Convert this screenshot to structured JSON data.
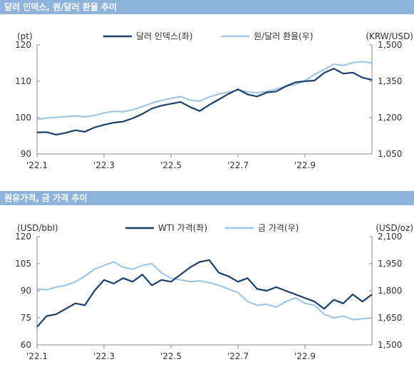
{
  "panels": [
    {
      "title": "달러 인덱스, 원/달러 환율 추이"
    },
    {
      "title": "원유가격, 금 가격 추이"
    }
  ],
  "colors": {
    "dark": "#1f3f66",
    "light": "#a3c6e2",
    "header": "#8fb4dc"
  },
  "chart_data": [
    {
      "type": "line",
      "title": "달러 인덱스, 원/달러 환율 추이",
      "y_left_unit": "(pt)",
      "y_right_unit": "(KRW/USD)",
      "y_left_range": [
        90,
        120
      ],
      "y_right_range": [
        1050,
        1500
      ],
      "y_left_ticks": [
        "120",
        "110",
        "100",
        "90"
      ],
      "y_right_ticks": [
        "1,500",
        "1,350",
        "1,200",
        "1,050"
      ],
      "x_ticks": [
        "'22.1",
        "'22.3",
        "'22.5",
        "'22.7",
        "'22.9"
      ],
      "legend_position": "top-center",
      "series": [
        {
          "name": "달러 인덱스(좌)",
          "axis": "left",
          "color": "#1f3f66",
          "x": [
            "'22.1",
            "",
            "",
            "",
            "",
            "",
            "",
            "'22.3",
            "",
            "",
            "",
            "",
            "",
            "",
            "'22.5",
            "",
            "",
            "",
            "",
            "",
            "",
            "'22.7",
            "",
            "",
            "",
            "",
            "",
            "",
            "'22.9",
            "",
            "",
            "",
            "",
            "",
            "",
            ""
          ],
          "values": [
            95.9,
            96.0,
            95.3,
            95.8,
            96.5,
            96.1,
            97.3,
            98.0,
            98.6,
            98.9,
            99.8,
            101.0,
            102.5,
            103.3,
            103.8,
            104.3,
            102.9,
            101.8,
            103.5,
            105.0,
            106.5,
            107.8,
            106.4,
            105.8,
            106.9,
            107.2,
            108.6,
            109.7,
            110.0,
            110.2,
            112.3,
            113.5,
            112.1,
            112.4,
            111.0,
            110.4
          ],
          "y_left_unit_note": ""
        },
        {
          "name": "원/달러 환율(우)",
          "axis": "right",
          "color": "#a3c6e2",
          "values": [
            1192,
            1198,
            1201,
            1204,
            1207,
            1203,
            1209,
            1219,
            1226,
            1224,
            1232,
            1245,
            1260,
            1271,
            1279,
            1287,
            1272,
            1268,
            1285,
            1297,
            1305,
            1313,
            1306,
            1302,
            1308,
            1318,
            1329,
            1337,
            1352,
            1378,
            1398,
            1420,
            1415,
            1427,
            1431,
            1425
          ]
        }
      ]
    },
    {
      "type": "line",
      "title": "원유가격, 금 가격 추이",
      "y_left_unit": "(USD/bbl)",
      "y_right_unit": "(USD/oz)",
      "y_left_range": [
        60,
        120
      ],
      "y_right_range": [
        1500,
        2100
      ],
      "y_left_ticks": [
        "120",
        "105",
        "90",
        "75",
        "60"
      ],
      "y_right_ticks": [
        "2,100",
        "1,950",
        "1,800",
        "1,650",
        "1,500"
      ],
      "x_ticks": [
        "'22.1",
        "'22.3",
        "'22.5",
        "'22.7",
        "'22.9"
      ],
      "legend_position": "top-center",
      "series": [
        {
          "name": "WTI 가격(좌)",
          "axis": "left",
          "color": "#1f3f66",
          "values": [
            70,
            76,
            77,
            80,
            83,
            82,
            90,
            96,
            94,
            97,
            95,
            99,
            93,
            96,
            95,
            99,
            103,
            106,
            107,
            100,
            98,
            95,
            97,
            91,
            90,
            92,
            90,
            88,
            86,
            84,
            80,
            85,
            83,
            88,
            84,
            88
          ]
        },
        {
          "name": "금 가격(우)",
          "axis": "right",
          "color": "#a3c6e2",
          "values": [
            1810,
            1805,
            1820,
            1830,
            1850,
            1880,
            1920,
            1940,
            1960,
            1930,
            1920,
            1940,
            1950,
            1900,
            1870,
            1860,
            1850,
            1855,
            1845,
            1830,
            1810,
            1790,
            1740,
            1720,
            1725,
            1710,
            1740,
            1760,
            1730,
            1720,
            1670,
            1650,
            1660,
            1640,
            1645,
            1650
          ]
        }
      ]
    }
  ]
}
